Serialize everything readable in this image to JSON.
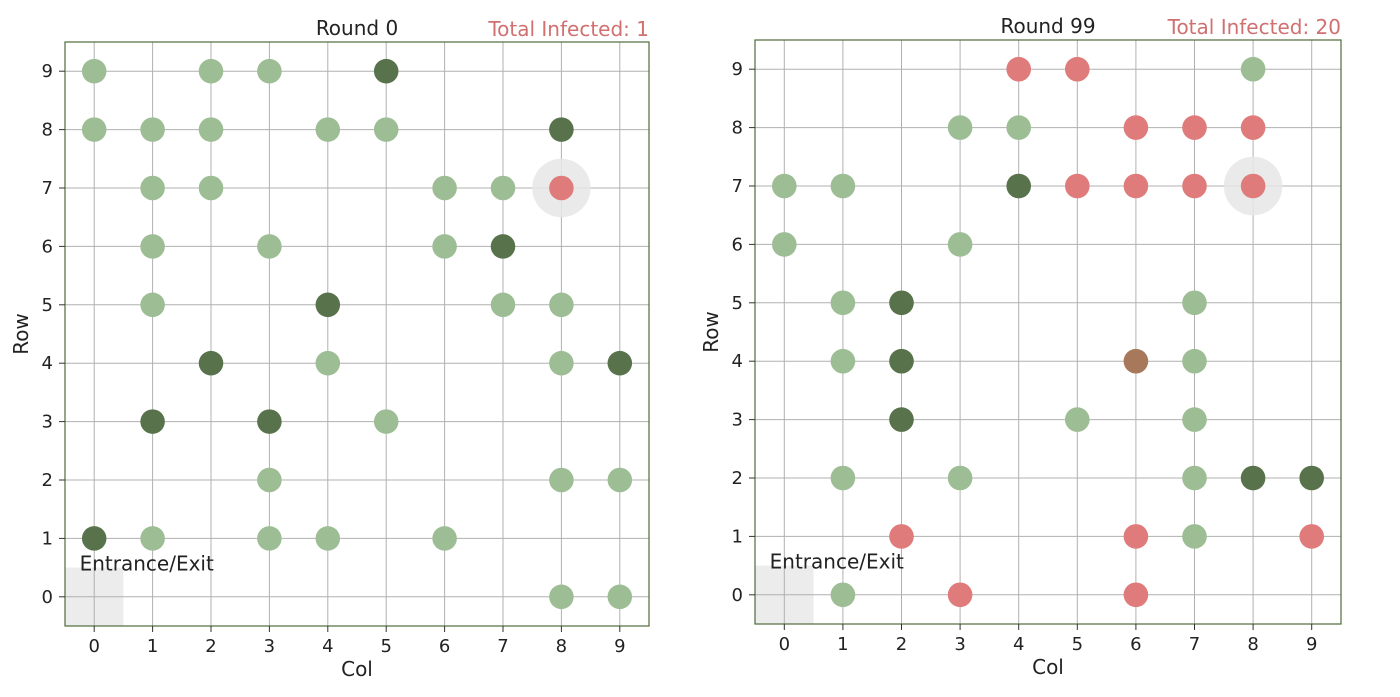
{
  "colors": {
    "healthy": "#9dbd94",
    "immune": "#58734c",
    "infected": "#e07b7b",
    "infected_immune": "#a8785a",
    "patient_zero_halo": "#e6e6e6",
    "entrance_zone": "#ececec",
    "infected_text": "#d07070"
  },
  "chart_data": [
    {
      "type": "scatter",
      "title": "Round 0",
      "total_infected_label": "Total Infected: 1",
      "xlabel": "Col",
      "ylabel": "Row",
      "xlim": [
        -0.5,
        9.5
      ],
      "ylim": [
        -0.5,
        9.5
      ],
      "xticks": [
        "0",
        "1",
        "2",
        "3",
        "4",
        "5",
        "6",
        "7",
        "8",
        "9"
      ],
      "yticks": [
        "0",
        "1",
        "2",
        "3",
        "4",
        "5",
        "6",
        "7",
        "8",
        "9"
      ],
      "grid": true,
      "entrance": {
        "label": "Entrance/Exit",
        "col": 0,
        "row": 0
      },
      "halo": {
        "col": 8,
        "row": 7
      },
      "series": [
        {
          "status": "healthy",
          "points": [
            [
              0,
              9
            ],
            [
              2,
              9
            ],
            [
              3,
              9
            ],
            [
              0,
              8
            ],
            [
              1,
              8
            ],
            [
              2,
              8
            ],
            [
              4,
              8
            ],
            [
              5,
              8
            ],
            [
              1,
              7
            ],
            [
              2,
              7
            ],
            [
              6,
              7
            ],
            [
              7,
              7
            ],
            [
              1,
              6
            ],
            [
              3,
              6
            ],
            [
              6,
              6
            ],
            [
              1,
              5
            ],
            [
              7,
              5
            ],
            [
              8,
              5
            ],
            [
              4,
              4
            ],
            [
              8,
              4
            ],
            [
              5,
              3
            ],
            [
              3,
              2
            ],
            [
              8,
              2
            ],
            [
              9,
              2
            ],
            [
              1,
              1
            ],
            [
              3,
              1
            ],
            [
              4,
              1
            ],
            [
              6,
              1
            ],
            [
              8,
              0
            ],
            [
              9,
              0
            ]
          ]
        },
        {
          "status": "immune",
          "points": [
            [
              5,
              9
            ],
            [
              8,
              8
            ],
            [
              7,
              6
            ],
            [
              4,
              5
            ],
            [
              2,
              4
            ],
            [
              9,
              4
            ],
            [
              1,
              3
            ],
            [
              3,
              3
            ],
            [
              0,
              1
            ]
          ]
        },
        {
          "status": "infected",
          "points": [
            [
              8,
              7
            ]
          ]
        }
      ]
    },
    {
      "type": "scatter",
      "title": "Round 99",
      "total_infected_label": "Total Infected: 20",
      "xlabel": "Col",
      "ylabel": "Row",
      "xlim": [
        -0.5,
        9.5
      ],
      "ylim": [
        -0.5,
        9.5
      ],
      "xticks": [
        "0",
        "1",
        "2",
        "3",
        "4",
        "5",
        "6",
        "7",
        "8",
        "9"
      ],
      "yticks": [
        "0",
        "1",
        "2",
        "3",
        "4",
        "5",
        "6",
        "7",
        "8",
        "9"
      ],
      "grid": true,
      "entrance": {
        "label": "Entrance/Exit",
        "col": 0,
        "row": 0
      },
      "halo": {
        "col": 8,
        "row": 7
      },
      "series": [
        {
          "status": "healthy",
          "points": [
            [
              8,
              9
            ],
            [
              3,
              8
            ],
            [
              4,
              8
            ],
            [
              0,
              7
            ],
            [
              1,
              7
            ],
            [
              0,
              6
            ],
            [
              3,
              6
            ],
            [
              1,
              5
            ],
            [
              7,
              5
            ],
            [
              1,
              4
            ],
            [
              7,
              4
            ],
            [
              5,
              3
            ],
            [
              7,
              3
            ],
            [
              1,
              2
            ],
            [
              3,
              2
            ],
            [
              7,
              2
            ],
            [
              7,
              1
            ],
            [
              1,
              0
            ]
          ]
        },
        {
          "status": "immune",
          "points": [
            [
              4,
              7
            ],
            [
              2,
              5
            ],
            [
              2,
              4
            ],
            [
              2,
              3
            ],
            [
              8,
              2
            ],
            [
              9,
              2
            ]
          ]
        },
        {
          "status": "infected",
          "points": [
            [
              4,
              9
            ],
            [
              5,
              9
            ],
            [
              6,
              8
            ],
            [
              7,
              8
            ],
            [
              8,
              8
            ],
            [
              5,
              7
            ],
            [
              6,
              7
            ],
            [
              7,
              7
            ],
            [
              8,
              7
            ],
            [
              2,
              1
            ],
            [
              6,
              1
            ],
            [
              9,
              1
            ],
            [
              3,
              0
            ],
            [
              6,
              0
            ]
          ]
        },
        {
          "status": "infected_immune",
          "points": [
            [
              6,
              4
            ]
          ]
        }
      ]
    }
  ]
}
